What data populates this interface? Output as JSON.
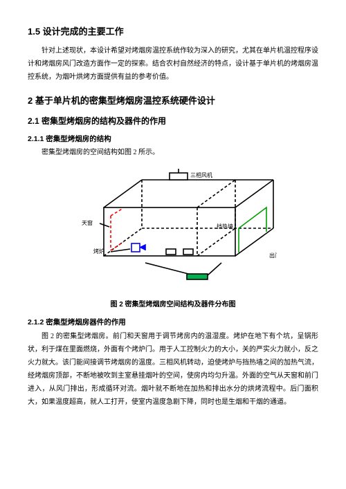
{
  "section_1_5": {
    "heading": "1.5 设计完成的主要工作",
    "para": "针对上述现状，本设计希望对烤烟房温控系统作较为深入的研究，尤其在单片机温控程序设计和烤烟房风门改造方面作一定的探索。结合农村自然经济的特点，设计基于单片机的烤烟房温控系统，为烟叶烘烤方面提供有益的参考价值。"
  },
  "section_2": {
    "heading": "2 基于单片机的密集型烤烟房温控系统硬件设计"
  },
  "section_2_1": {
    "heading": "2.1 密集型烤烟房的结构及器件的作用"
  },
  "section_2_1_1": {
    "heading": "2.1.1 密集型烤烟房的结构",
    "line": "密集型烤烟房的空间结构如图 2 所示。"
  },
  "figure": {
    "caption": "图 2 密集型烤烟房空间结构及器件分布图",
    "labels": {
      "fan": "三相风机",
      "skylight": "天窗",
      "wall": "挡热墙",
      "furnace": "烤炉",
      "door": "出门"
    },
    "colors": {
      "outline": "#000000",
      "red": "#ff0000",
      "blue": "#0000ff",
      "green": "#00a000",
      "fill_green": "#00b050",
      "label": "#000000"
    },
    "stroke_width": 1.6
  },
  "section_2_1_2": {
    "heading": "2.1.2 密集型烤烟房器件的作用",
    "para": "图 2 的密集型烤烟房。前门和天窗用于调节烤房内的温湿度。烤炉在地下有个坑，呈锅形状，利于煤在里面燃烧，外面有个烤炉门。用于人工控制火力的大小，关的严实火力就小，反之火力就大。该门能间接调节烤烟房的温度。三相风机转动，迫使烤炉与挡热墙之间的加热气流，经烤烟房顶部，不断地被吹到主室悬挂烟叶的空间，使房内均匀升温。外面的空气从天窗和前门进入，从风门排出，形成循环对流。烟叶就不断地在加热和排出水分的烘烤流程中。后门面积大，如果温度超高，就人工打开，使室内温度急剧下降，同时也是生烟和干烟的通道。"
  }
}
